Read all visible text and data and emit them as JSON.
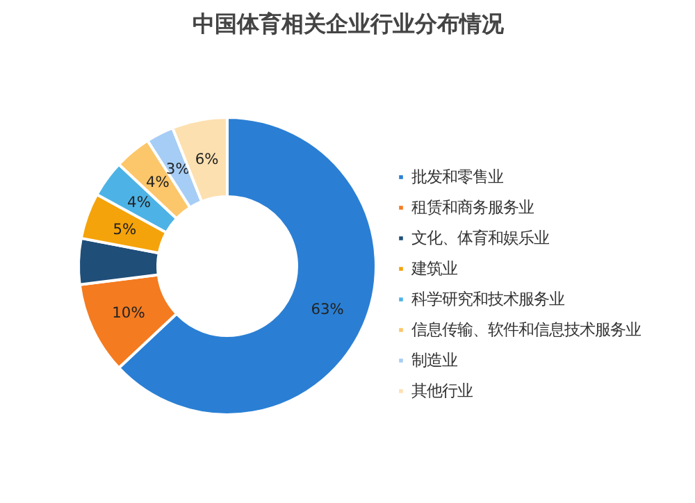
{
  "chart_data": {
    "type": "donut",
    "title": "中国体育相关企业行业分布情况",
    "categories": [
      "批发和零售业",
      "租赁和商务服务业",
      "文化、体育和娱乐业",
      "建筑业",
      "科学研究和技术服务业",
      "信息传输、软件和信息技术服务业",
      "制造业",
      "其他行业"
    ],
    "values": [
      63,
      10,
      5,
      5,
      4,
      4,
      3,
      6
    ],
    "colors": [
      "#2a7fd4",
      "#f47b20",
      "#1f4e79",
      "#f5a30a",
      "#4db3e6",
      "#fcc66a",
      "#a6cdf5",
      "#fde0b0"
    ],
    "value_labels": [
      "63%",
      "10%",
      null,
      "5%",
      "4%",
      "4%",
      "3%",
      "6%"
    ],
    "legend": "right"
  }
}
